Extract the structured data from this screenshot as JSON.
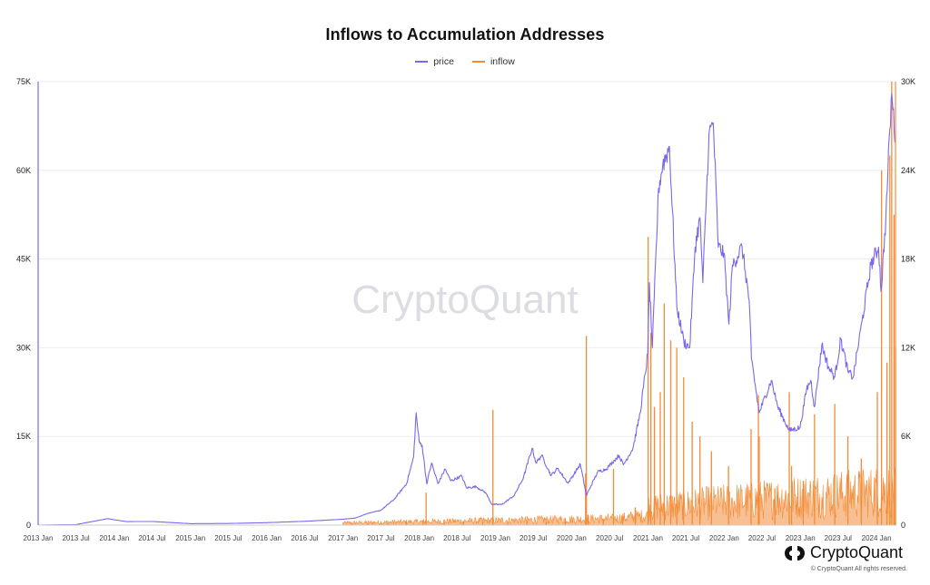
{
  "chart_data": {
    "type": "line",
    "title": "Inflows to Accumulation Addresses",
    "legend": [
      "price",
      "inflow"
    ],
    "legend_position": "top-center",
    "grid": true,
    "colors": {
      "price": "#7b68ee",
      "inflow": "#f28c38"
    },
    "x_tick_labels": [
      "2013 Jan",
      "2013 Jul",
      "2014 Jan",
      "2014 Jul",
      "2015 Jan",
      "2015 Jul",
      "2016 Jan",
      "2016 Jul",
      "2017 Jan",
      "2017 Jul",
      "2018 Jan",
      "2018 Jul",
      "2019 Jan",
      "2019 Jul",
      "2020 Jan",
      "2020 Jul",
      "2021 Jan",
      "2021 Jul",
      "2022 Jan",
      "2022 Jul",
      "2023 Jan",
      "2023 Jul",
      "2024 Jan"
    ],
    "y_left": {
      "label": "price",
      "range": [
        0,
        75000
      ],
      "tick_labels": [
        "0",
        "15K",
        "30K",
        "45K",
        "60K",
        "75K"
      ],
      "tick_values": [
        0,
        15000,
        30000,
        45000,
        60000,
        75000
      ]
    },
    "y_right": {
      "label": "inflow",
      "range": [
        0,
        30000
      ],
      "tick_labels": [
        "0",
        "6K",
        "12K",
        "18K",
        "24K",
        "30K"
      ],
      "tick_values": [
        0,
        6000,
        12000,
        18000,
        24000,
        30000
      ]
    },
    "x_range": [
      "2013-01-01",
      "2024-04-01"
    ],
    "series": [
      {
        "name": "price",
        "axis": "left",
        "points": [
          [
            "2013-01-15",
            13
          ],
          [
            "2013-07-01",
            90
          ],
          [
            "2013-12-01",
            1100
          ],
          [
            "2014-01-01",
            900
          ],
          [
            "2014-03-01",
            600
          ],
          [
            "2014-07-01",
            620
          ],
          [
            "2015-01-01",
            250
          ],
          [
            "2015-07-01",
            280
          ],
          [
            "2016-01-01",
            420
          ],
          [
            "2016-07-01",
            650
          ],
          [
            "2017-01-01",
            1000
          ],
          [
            "2017-03-01",
            1200
          ],
          [
            "2017-05-01",
            2000
          ],
          [
            "2017-07-01",
            2500
          ],
          [
            "2017-09-01",
            4300
          ],
          [
            "2017-11-01",
            7000
          ],
          [
            "2017-12-05",
            11500
          ],
          [
            "2017-12-17",
            19000
          ],
          [
            "2018-01-01",
            14000
          ],
          [
            "2018-01-15",
            13500
          ],
          [
            "2018-02-06",
            7000
          ],
          [
            "2018-03-01",
            10500
          ],
          [
            "2018-04-01",
            7000
          ],
          [
            "2018-05-05",
            9500
          ],
          [
            "2018-06-01",
            7500
          ],
          [
            "2018-07-24",
            8300
          ],
          [
            "2018-08-15",
            6300
          ],
          [
            "2018-10-01",
            6500
          ],
          [
            "2018-11-15",
            5500
          ],
          [
            "2018-12-15",
            3500
          ],
          [
            "2019-02-01",
            3500
          ],
          [
            "2019-04-01",
            5000
          ],
          [
            "2019-05-15",
            8000
          ],
          [
            "2019-06-26",
            13000
          ],
          [
            "2019-07-15",
            10500
          ],
          [
            "2019-08-10",
            11800
          ],
          [
            "2019-09-25",
            8400
          ],
          [
            "2019-10-26",
            9600
          ],
          [
            "2019-12-15",
            7100
          ],
          [
            "2020-02-12",
            10300
          ],
          [
            "2020-03-12",
            5000
          ],
          [
            "2020-04-01",
            6500
          ],
          [
            "2020-05-05",
            9000
          ],
          [
            "2020-06-15",
            9500
          ],
          [
            "2020-07-25",
            11000
          ],
          [
            "2020-08-15",
            11800
          ],
          [
            "2020-09-05",
            10200
          ],
          [
            "2020-10-21",
            13000
          ],
          [
            "2020-11-25",
            19000
          ],
          [
            "2020-12-31",
            29000
          ],
          [
            "2021-01-08",
            41000
          ],
          [
            "2021-01-22",
            30000
          ],
          [
            "2021-02-21",
            57000
          ],
          [
            "2021-03-13",
            61000
          ],
          [
            "2021-04-14",
            64000
          ],
          [
            "2021-05-19",
            37000
          ],
          [
            "2021-06-22",
            31000
          ],
          [
            "2021-07-20",
            30000
          ],
          [
            "2021-08-15",
            47000
          ],
          [
            "2021-09-07",
            52000
          ],
          [
            "2021-09-21",
            41000
          ],
          [
            "2021-10-20",
            66000
          ],
          [
            "2021-11-10",
            68000
          ],
          [
            "2021-12-04",
            47000
          ],
          [
            "2021-12-31",
            46000
          ],
          [
            "2022-01-24",
            34000
          ],
          [
            "2022-02-10",
            44000
          ],
          [
            "2022-03-28",
            47000
          ],
          [
            "2022-05-01",
            38000
          ],
          [
            "2022-05-12",
            28000
          ],
          [
            "2022-06-18",
            19000
          ],
          [
            "2022-08-15",
            24500
          ],
          [
            "2022-09-15",
            20000
          ],
          [
            "2022-11-09",
            16000
          ],
          [
            "2022-12-31",
            16500
          ],
          [
            "2023-01-31",
            23000
          ],
          [
            "2023-02-20",
            24500
          ],
          [
            "2023-03-10",
            20000
          ],
          [
            "2023-04-14",
            30500
          ],
          [
            "2023-05-15",
            26800
          ],
          [
            "2023-06-15",
            25000
          ],
          [
            "2023-07-14",
            31500
          ],
          [
            "2023-08-17",
            26000
          ],
          [
            "2023-09-11",
            25000
          ],
          [
            "2023-10-24",
            34500
          ],
          [
            "2023-12-05",
            44000
          ],
          [
            "2024-01-11",
            47000
          ],
          [
            "2024-01-23",
            39500
          ],
          [
            "2024-02-15",
            52000
          ],
          [
            "2024-03-05",
            67000
          ],
          [
            "2024-03-14",
            73000
          ],
          [
            "2024-04-01",
            65000
          ]
        ]
      },
      {
        "name": "inflow",
        "axis": "right",
        "points": [
          [
            "2017-02-15",
            80
          ],
          [
            "2017-05-01",
            120
          ],
          [
            "2017-08-01",
            150
          ],
          [
            "2017-11-01",
            260
          ],
          [
            "2018-01-20",
            300
          ],
          [
            "2018-02-03",
            2200
          ],
          [
            "2018-05-01",
            200
          ],
          [
            "2018-08-01",
            220
          ],
          [
            "2018-11-01",
            250
          ],
          [
            "2018-12-20",
            7800
          ],
          [
            "2019-03-01",
            200
          ],
          [
            "2019-06-01",
            300
          ],
          [
            "2019-09-01",
            250
          ],
          [
            "2019-12-01",
            400
          ],
          [
            "2020-03-08",
            3500
          ],
          [
            "2020-03-12",
            12800
          ],
          [
            "2020-03-20",
            700
          ],
          [
            "2020-06-01",
            400
          ],
          [
            "2020-07-20",
            3800
          ],
          [
            "2020-09-01",
            600
          ],
          [
            "2020-11-01",
            1200
          ],
          [
            "2021-01-02",
            19500
          ],
          [
            "2021-01-15",
            13000
          ],
          [
            "2021-02-01",
            8000
          ],
          [
            "2021-03-01",
            9000
          ],
          [
            "2021-03-20",
            15000
          ],
          [
            "2021-04-20",
            12500
          ],
          [
            "2021-05-19",
            12000
          ],
          [
            "2021-06-21",
            10000
          ],
          [
            "2021-08-01",
            7000
          ],
          [
            "2021-09-07",
            6000
          ],
          [
            "2021-11-01",
            5000
          ],
          [
            "2022-01-22",
            4000
          ],
          [
            "2022-05-10",
            6500
          ],
          [
            "2022-06-14",
            8800
          ],
          [
            "2022-06-18",
            6000
          ],
          [
            "2022-09-01",
            2500
          ],
          [
            "2022-11-09",
            9000
          ],
          [
            "2022-11-20",
            4000
          ],
          [
            "2023-01-15",
            3000
          ],
          [
            "2023-03-10",
            7500
          ],
          [
            "2023-06-15",
            8200
          ],
          [
            "2023-08-17",
            6000
          ],
          [
            "2023-10-20",
            4500
          ],
          [
            "2024-01-05",
            9000
          ],
          [
            "2024-01-25",
            24000
          ],
          [
            "2024-02-20",
            11000
          ],
          [
            "2024-03-05",
            25000
          ],
          [
            "2024-03-14",
            30000
          ],
          [
            "2024-03-25",
            21000
          ],
          [
            "2024-04-01",
            12000
          ]
        ]
      }
    ]
  },
  "watermark": "CryptoQuant",
  "brand": {
    "name": "CryptoQuant",
    "copyright": "© CryptoQuant All rights reserved."
  }
}
